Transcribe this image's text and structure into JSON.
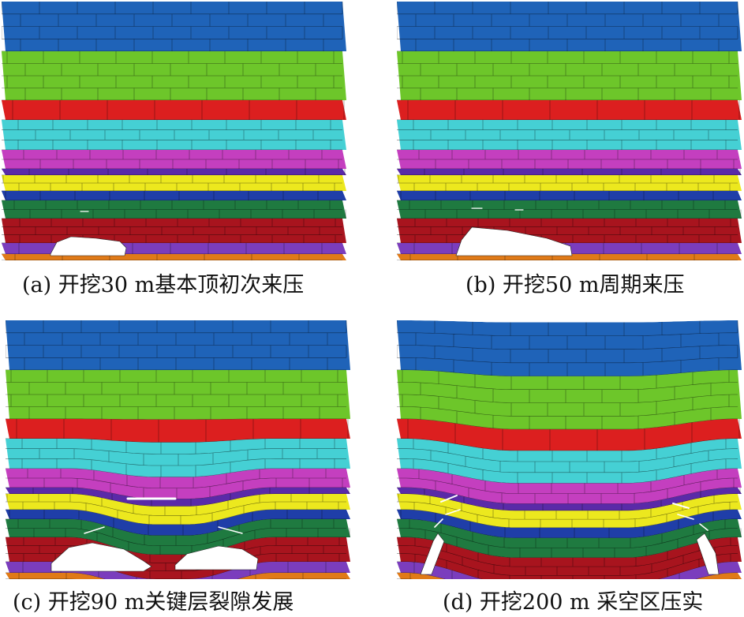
{
  "figure": {
    "layer_colors": {
      "blue_top": "#1f63b8",
      "green": "#6dc62a",
      "red": "#dc1f1f",
      "cyan": "#45d0d4",
      "magenta": "#c43fbf",
      "purple_thin": "#5a2aa8",
      "yellow": "#ece81e",
      "navy": "#1f3ea8",
      "dark_green": "#1f7a40",
      "dark_red": "#a8141e",
      "violet": "#7b3dbd",
      "orange_base": "#e07a18",
      "block_line": "#000000"
    },
    "panels": [
      {
        "id": "a",
        "caption": "(a) 开挖30 m基本顶初次来压"
      },
      {
        "id": "b",
        "caption": "(b) 开挖50 m周期来压"
      },
      {
        "id": "c",
        "caption": "(c) 开挖90 m关键层裂隙发展"
      },
      {
        "id": "d",
        "caption": "(d) 开挖200 m 采空区压实"
      }
    ]
  }
}
